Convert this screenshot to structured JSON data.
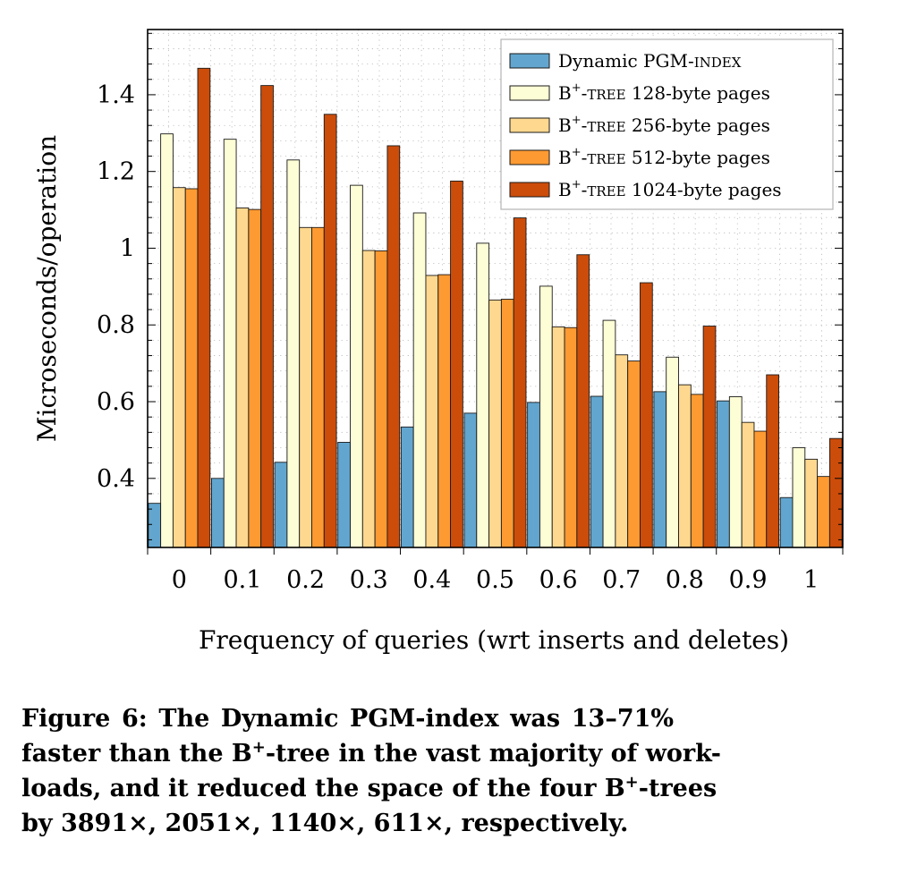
{
  "chart_data": {
    "type": "bar",
    "xlabel": "Frequency of queries (wrt inserts and deletes)",
    "ylabel": "Microseconds/operation",
    "categories": [
      "0",
      "0.1",
      "0.2",
      "0.3",
      "0.4",
      "0.5",
      "0.6",
      "0.7",
      "0.8",
      "0.9",
      "1"
    ],
    "ylim": [
      0.22,
      1.57
    ],
    "yticks": [
      "0.4",
      "0.6",
      "0.8",
      "1",
      "1.2",
      "1.4"
    ],
    "grid": true,
    "legend_position": "top-right",
    "series": [
      {
        "name": "Dynamic PGM-INDEX",
        "name_parts": [
          "Dynamic PGM-",
          "INDEX"
        ],
        "color": "#62a6cf",
        "values": [
          0.335,
          0.4,
          0.442,
          0.494,
          0.534,
          0.57,
          0.598,
          0.614,
          0.626,
          0.602,
          0.35
        ]
      },
      {
        "name": "B+-TREE 128-byte pages",
        "name_parts": [
          "B",
          "+",
          "-",
          "TREE",
          " 128-byte pages"
        ],
        "color": "#fefed6",
        "values": [
          1.298,
          1.284,
          1.23,
          1.164,
          1.092,
          1.013,
          0.901,
          0.812,
          0.716,
          0.613,
          0.48
        ]
      },
      {
        "name": "B+-TREE 256-byte pages",
        "name_parts": [
          "B",
          "+",
          "-",
          "TREE",
          " 256-byte pages"
        ],
        "color": "#fed88f",
        "values": [
          1.158,
          1.105,
          1.054,
          0.994,
          0.929,
          0.865,
          0.795,
          0.722,
          0.644,
          0.546,
          0.45
        ]
      },
      {
        "name": "B+-TREE 512-byte pages",
        "name_parts": [
          "B",
          "+",
          "-",
          "TREE",
          " 512-byte pages"
        ],
        "color": "#fe9a32",
        "values": [
          1.155,
          1.101,
          1.054,
          0.993,
          0.931,
          0.867,
          0.793,
          0.706,
          0.619,
          0.523,
          0.405
        ]
      },
      {
        "name": "B+-TREE 1024-byte pages",
        "name_parts": [
          "B",
          "+",
          "-",
          "TREE",
          " 1024-byte pages"
        ],
        "color": "#cc4c0a",
        "values": [
          1.469,
          1.424,
          1.349,
          1.267,
          1.175,
          1.079,
          0.983,
          0.91,
          0.797,
          0.67,
          0.504
        ]
      }
    ]
  },
  "caption": {
    "line1": "Figure 6:  The Dynamic PGM-index was 13–71%",
    "line2a": "faster than the B",
    "line2sup": "+",
    "line2b": "-tree in the vast majority of work-",
    "line3a": "loads, and it reduced the space of the four B",
    "line3sup": "+",
    "line3b": "-trees",
    "line4": "by 3891×, 2051×, 1140×, 611×, respectively."
  }
}
